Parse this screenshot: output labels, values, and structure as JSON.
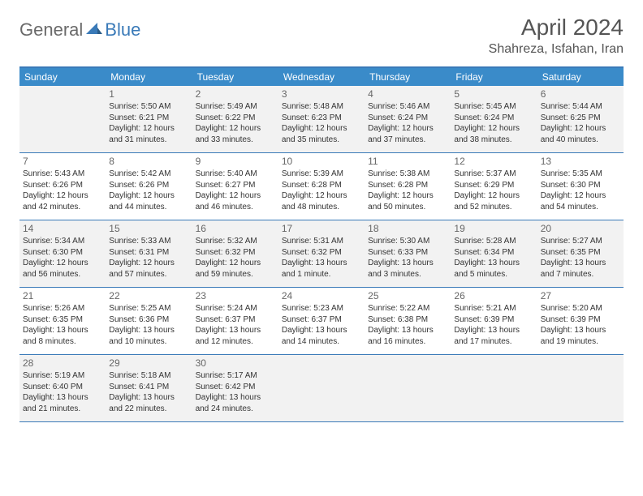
{
  "logo": {
    "part1": "General",
    "part2": "Blue"
  },
  "title": "April 2024",
  "location": "Shahreza, Isfahan, Iran",
  "weekdays": [
    "Sunday",
    "Monday",
    "Tuesday",
    "Wednesday",
    "Thursday",
    "Friday",
    "Saturday"
  ],
  "colors": {
    "header_bar": "#3a8bc9",
    "rule": "#3a7ab8",
    "alt_row_bg": "#f2f2f2",
    "text": "#333333",
    "background": "#ffffff"
  },
  "weeks": [
    [
      {
        "blank": true
      },
      {
        "num": "1",
        "sunrise": "Sunrise: 5:50 AM",
        "sunset": "Sunset: 6:21 PM",
        "day1": "Daylight: 12 hours",
        "day2": "and 31 minutes."
      },
      {
        "num": "2",
        "sunrise": "Sunrise: 5:49 AM",
        "sunset": "Sunset: 6:22 PM",
        "day1": "Daylight: 12 hours",
        "day2": "and 33 minutes."
      },
      {
        "num": "3",
        "sunrise": "Sunrise: 5:48 AM",
        "sunset": "Sunset: 6:23 PM",
        "day1": "Daylight: 12 hours",
        "day2": "and 35 minutes."
      },
      {
        "num": "4",
        "sunrise": "Sunrise: 5:46 AM",
        "sunset": "Sunset: 6:24 PM",
        "day1": "Daylight: 12 hours",
        "day2": "and 37 minutes."
      },
      {
        "num": "5",
        "sunrise": "Sunrise: 5:45 AM",
        "sunset": "Sunset: 6:24 PM",
        "day1": "Daylight: 12 hours",
        "day2": "and 38 minutes."
      },
      {
        "num": "6",
        "sunrise": "Sunrise: 5:44 AM",
        "sunset": "Sunset: 6:25 PM",
        "day1": "Daylight: 12 hours",
        "day2": "and 40 minutes."
      }
    ],
    [
      {
        "num": "7",
        "sunrise": "Sunrise: 5:43 AM",
        "sunset": "Sunset: 6:26 PM",
        "day1": "Daylight: 12 hours",
        "day2": "and 42 minutes."
      },
      {
        "num": "8",
        "sunrise": "Sunrise: 5:42 AM",
        "sunset": "Sunset: 6:26 PM",
        "day1": "Daylight: 12 hours",
        "day2": "and 44 minutes."
      },
      {
        "num": "9",
        "sunrise": "Sunrise: 5:40 AM",
        "sunset": "Sunset: 6:27 PM",
        "day1": "Daylight: 12 hours",
        "day2": "and 46 minutes."
      },
      {
        "num": "10",
        "sunrise": "Sunrise: 5:39 AM",
        "sunset": "Sunset: 6:28 PM",
        "day1": "Daylight: 12 hours",
        "day2": "and 48 minutes."
      },
      {
        "num": "11",
        "sunrise": "Sunrise: 5:38 AM",
        "sunset": "Sunset: 6:28 PM",
        "day1": "Daylight: 12 hours",
        "day2": "and 50 minutes."
      },
      {
        "num": "12",
        "sunrise": "Sunrise: 5:37 AM",
        "sunset": "Sunset: 6:29 PM",
        "day1": "Daylight: 12 hours",
        "day2": "and 52 minutes."
      },
      {
        "num": "13",
        "sunrise": "Sunrise: 5:35 AM",
        "sunset": "Sunset: 6:30 PM",
        "day1": "Daylight: 12 hours",
        "day2": "and 54 minutes."
      }
    ],
    [
      {
        "num": "14",
        "sunrise": "Sunrise: 5:34 AM",
        "sunset": "Sunset: 6:30 PM",
        "day1": "Daylight: 12 hours",
        "day2": "and 56 minutes."
      },
      {
        "num": "15",
        "sunrise": "Sunrise: 5:33 AM",
        "sunset": "Sunset: 6:31 PM",
        "day1": "Daylight: 12 hours",
        "day2": "and 57 minutes."
      },
      {
        "num": "16",
        "sunrise": "Sunrise: 5:32 AM",
        "sunset": "Sunset: 6:32 PM",
        "day1": "Daylight: 12 hours",
        "day2": "and 59 minutes."
      },
      {
        "num": "17",
        "sunrise": "Sunrise: 5:31 AM",
        "sunset": "Sunset: 6:32 PM",
        "day1": "Daylight: 13 hours",
        "day2": "and 1 minute."
      },
      {
        "num": "18",
        "sunrise": "Sunrise: 5:30 AM",
        "sunset": "Sunset: 6:33 PM",
        "day1": "Daylight: 13 hours",
        "day2": "and 3 minutes."
      },
      {
        "num": "19",
        "sunrise": "Sunrise: 5:28 AM",
        "sunset": "Sunset: 6:34 PM",
        "day1": "Daylight: 13 hours",
        "day2": "and 5 minutes."
      },
      {
        "num": "20",
        "sunrise": "Sunrise: 5:27 AM",
        "sunset": "Sunset: 6:35 PM",
        "day1": "Daylight: 13 hours",
        "day2": "and 7 minutes."
      }
    ],
    [
      {
        "num": "21",
        "sunrise": "Sunrise: 5:26 AM",
        "sunset": "Sunset: 6:35 PM",
        "day1": "Daylight: 13 hours",
        "day2": "and 8 minutes."
      },
      {
        "num": "22",
        "sunrise": "Sunrise: 5:25 AM",
        "sunset": "Sunset: 6:36 PM",
        "day1": "Daylight: 13 hours",
        "day2": "and 10 minutes."
      },
      {
        "num": "23",
        "sunrise": "Sunrise: 5:24 AM",
        "sunset": "Sunset: 6:37 PM",
        "day1": "Daylight: 13 hours",
        "day2": "and 12 minutes."
      },
      {
        "num": "24",
        "sunrise": "Sunrise: 5:23 AM",
        "sunset": "Sunset: 6:37 PM",
        "day1": "Daylight: 13 hours",
        "day2": "and 14 minutes."
      },
      {
        "num": "25",
        "sunrise": "Sunrise: 5:22 AM",
        "sunset": "Sunset: 6:38 PM",
        "day1": "Daylight: 13 hours",
        "day2": "and 16 minutes."
      },
      {
        "num": "26",
        "sunrise": "Sunrise: 5:21 AM",
        "sunset": "Sunset: 6:39 PM",
        "day1": "Daylight: 13 hours",
        "day2": "and 17 minutes."
      },
      {
        "num": "27",
        "sunrise": "Sunrise: 5:20 AM",
        "sunset": "Sunset: 6:39 PM",
        "day1": "Daylight: 13 hours",
        "day2": "and 19 minutes."
      }
    ],
    [
      {
        "num": "28",
        "sunrise": "Sunrise: 5:19 AM",
        "sunset": "Sunset: 6:40 PM",
        "day1": "Daylight: 13 hours",
        "day2": "and 21 minutes."
      },
      {
        "num": "29",
        "sunrise": "Sunrise: 5:18 AM",
        "sunset": "Sunset: 6:41 PM",
        "day1": "Daylight: 13 hours",
        "day2": "and 22 minutes."
      },
      {
        "num": "30",
        "sunrise": "Sunrise: 5:17 AM",
        "sunset": "Sunset: 6:42 PM",
        "day1": "Daylight: 13 hours",
        "day2": "and 24 minutes."
      },
      {
        "blank": true
      },
      {
        "blank": true
      },
      {
        "blank": true
      },
      {
        "blank": true
      }
    ]
  ]
}
